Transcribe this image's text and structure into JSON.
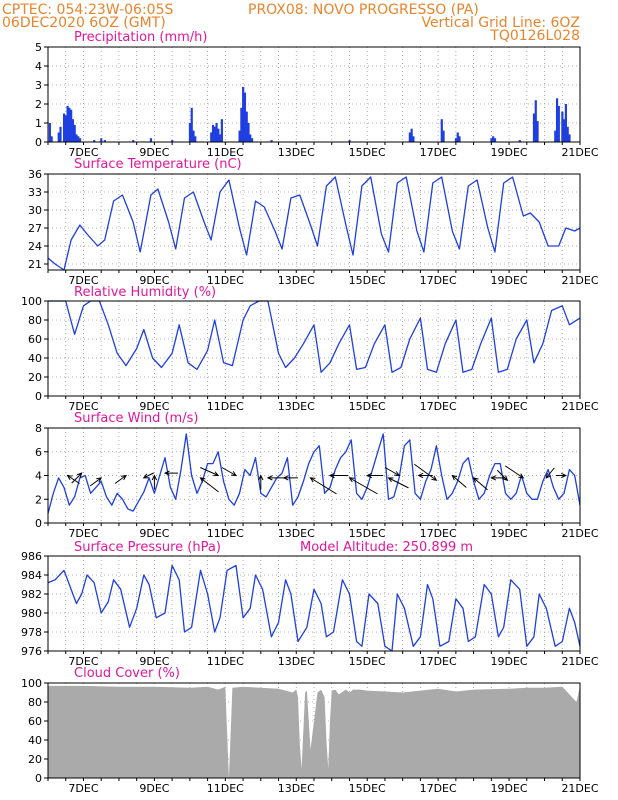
{
  "header": {
    "line1_left": "CPTEC:   054:23W-06:05S",
    "line1_right": "PROX08: NOVO PROGRESSO (PA)",
    "line2_left": "06DEC2020 6OZ (GMT)",
    "line2_right": "Vertical Grid Line: 6OZ",
    "line3_right": "TQ0126L028"
  },
  "x_axis": {
    "start_day": 6.0,
    "end_day": 21.0,
    "tick_days": [
      7,
      9,
      11,
      13,
      15,
      17,
      19,
      21
    ],
    "tick_labels": [
      "7DEC",
      "9DEC",
      "11DEC",
      "13DEC",
      "15DEC",
      "17DEC",
      "19DEC",
      "21DEC"
    ]
  },
  "chart_data": [
    {
      "type": "bar",
      "title": "Precipitation (mm/h)",
      "ylim": [
        0,
        5
      ],
      "yticks": [
        0,
        1,
        2,
        3,
        4,
        5
      ],
      "color": "#1f3fe0",
      "x": [
        6.05,
        6.1,
        6.3,
        6.35,
        6.45,
        6.5,
        6.55,
        6.6,
        6.65,
        6.7,
        6.75,
        6.8,
        6.85,
        6.9,
        7.3,
        7.5,
        7.6,
        8.4,
        8.9,
        9.5,
        10.0,
        10.05,
        10.1,
        10.15,
        10.6,
        10.65,
        10.7,
        10.75,
        10.8,
        10.85,
        10.9,
        11.4,
        11.45,
        11.5,
        11.55,
        11.6,
        11.65,
        11.7,
        11.75,
        12.3,
        14.5,
        16.2,
        16.25,
        16.3,
        17.1,
        17.15,
        17.5,
        17.55,
        17.6,
        18.5,
        18.55,
        18.6,
        19.3,
        19.7,
        19.75,
        19.8,
        20.3,
        20.35,
        20.4,
        20.5,
        20.55,
        20.6,
        20.65,
        20.7
      ],
      "values": [
        1.0,
        0.3,
        0.5,
        0.8,
        1.5,
        1.4,
        1.9,
        1.8,
        1.7,
        1.2,
        0.9,
        0.4,
        0.3,
        0.2,
        0.1,
        0.2,
        0.1,
        0.1,
        0.2,
        0.1,
        1.0,
        1.8,
        0.6,
        0.3,
        0.5,
        0.9,
        0.8,
        1.0,
        0.7,
        0.4,
        1.2,
        0.6,
        1.8,
        2.9,
        2.6,
        1.6,
        1.0,
        0.4,
        0.2,
        0.1,
        0.1,
        0.5,
        0.7,
        0.3,
        1.2,
        0.6,
        0.2,
        0.5,
        0.3,
        0.2,
        0.3,
        0.2,
        0.1,
        1.5,
        2.2,
        1.1,
        0.6,
        2.3,
        1.9,
        1.6,
        1.2,
        2.0,
        0.8,
        0.4
      ]
    },
    {
      "type": "line",
      "title": "Surface Temperature (nC)",
      "ylim": [
        20,
        36
      ],
      "yticks": [
        21,
        24,
        27,
        30,
        33,
        36
      ],
      "color": "#1f3fe0",
      "x": [
        6.0,
        6.2,
        6.45,
        6.65,
        6.9,
        7.1,
        7.4,
        7.6,
        7.85,
        8.1,
        8.4,
        8.6,
        8.9,
        9.1,
        9.4,
        9.6,
        9.85,
        10.1,
        10.4,
        10.6,
        10.85,
        11.1,
        11.4,
        11.6,
        11.85,
        12.1,
        12.4,
        12.6,
        12.85,
        13.1,
        13.4,
        13.6,
        13.85,
        14.1,
        14.4,
        14.6,
        14.85,
        15.1,
        15.4,
        15.6,
        15.85,
        16.1,
        16.4,
        16.6,
        16.85,
        17.1,
        17.4,
        17.6,
        17.85,
        18.1,
        18.4,
        18.6,
        18.85,
        19.1,
        19.4,
        19.6,
        19.85,
        20.1,
        20.4,
        20.6,
        20.85,
        21.0
      ],
      "values": [
        22.0,
        21.0,
        20.0,
        25.0,
        27.5,
        26.0,
        24.0,
        25.0,
        31.5,
        32.5,
        28.0,
        23.0,
        32.5,
        33.5,
        28.0,
        23.5,
        32.0,
        33.0,
        28.0,
        25.0,
        33.0,
        35.0,
        27.0,
        22.5,
        31.5,
        30.5,
        26.5,
        23.5,
        32.0,
        32.5,
        27.5,
        24.0,
        34.0,
        35.5,
        27.5,
        22.5,
        34.0,
        35.5,
        26.0,
        23.0,
        34.5,
        35.5,
        26.5,
        23.0,
        34.5,
        35.5,
        26.5,
        23.5,
        34.0,
        35.0,
        27.0,
        23.0,
        34.5,
        35.5,
        29.0,
        29.5,
        28.0,
        24.0,
        24.0,
        27.0,
        26.5,
        27.0
      ]
    },
    {
      "type": "line",
      "title": "Relative Humidity (%)",
      "ylim": [
        0,
        100
      ],
      "yticks": [
        0,
        20,
        40,
        60,
        80,
        100
      ],
      "color": "#1f3fe0",
      "x": [
        6.0,
        6.3,
        6.5,
        6.75,
        7.0,
        7.2,
        7.45,
        7.7,
        7.95,
        8.2,
        8.5,
        8.7,
        8.95,
        9.2,
        9.5,
        9.7,
        9.95,
        10.2,
        10.5,
        10.7,
        10.95,
        11.2,
        11.5,
        11.7,
        11.95,
        12.2,
        12.5,
        12.7,
        12.95,
        13.2,
        13.5,
        13.7,
        13.95,
        14.2,
        14.5,
        14.7,
        14.95,
        15.2,
        15.5,
        15.7,
        15.95,
        16.2,
        16.5,
        16.7,
        16.95,
        17.2,
        17.5,
        17.7,
        17.95,
        18.2,
        18.5,
        18.7,
        18.95,
        19.2,
        19.5,
        19.7,
        19.95,
        20.2,
        20.5,
        20.7,
        21.0
      ],
      "values": [
        100,
        100,
        100,
        65,
        95,
        100,
        100,
        75,
        45,
        32,
        50,
        70,
        40,
        30,
        45,
        75,
        35,
        28,
        48,
        80,
        35,
        32,
        80,
        95,
        100,
        100,
        45,
        30,
        40,
        55,
        75,
        25,
        35,
        55,
        75,
        28,
        30,
        55,
        75,
        25,
        30,
        60,
        82,
        28,
        25,
        55,
        80,
        25,
        28,
        55,
        82,
        25,
        28,
        60,
        80,
        35,
        55,
        90,
        95,
        75,
        82
      ]
    },
    {
      "type": "line",
      "title": "Surface Wind (m/s)",
      "ylim": [
        0,
        8
      ],
      "yticks": [
        0,
        2,
        4,
        6,
        8
      ],
      "color": "#1f3fe0",
      "x": [
        6.0,
        6.15,
        6.3,
        6.45,
        6.6,
        6.75,
        6.9,
        7.05,
        7.2,
        7.35,
        7.5,
        7.65,
        7.8,
        7.95,
        8.1,
        8.25,
        8.4,
        8.55,
        8.7,
        8.85,
        9.0,
        9.15,
        9.3,
        9.45,
        9.6,
        9.75,
        9.9,
        10.05,
        10.2,
        10.35,
        10.5,
        10.65,
        10.8,
        10.95,
        11.1,
        11.25,
        11.4,
        11.55,
        11.7,
        11.85,
        12.0,
        12.15,
        12.3,
        12.45,
        12.6,
        12.75,
        12.9,
        13.05,
        13.2,
        13.35,
        13.5,
        13.65,
        13.8,
        13.95,
        14.1,
        14.25,
        14.4,
        14.55,
        14.7,
        14.85,
        15.0,
        15.15,
        15.3,
        15.45,
        15.6,
        15.75,
        15.9,
        16.05,
        16.2,
        16.35,
        16.5,
        16.65,
        16.8,
        16.95,
        17.1,
        17.25,
        17.4,
        17.55,
        17.7,
        17.85,
        18.0,
        18.15,
        18.3,
        18.45,
        18.6,
        18.75,
        18.9,
        19.05,
        19.2,
        19.35,
        19.5,
        19.65,
        19.8,
        19.95,
        20.1,
        20.25,
        20.4,
        20.55,
        20.7,
        20.85,
        21.0
      ],
      "values": [
        0.8,
        2.5,
        3.8,
        3.0,
        1.5,
        2.2,
        3.8,
        4.0,
        2.5,
        3.0,
        3.5,
        2.2,
        1.5,
        2.5,
        2.0,
        1.2,
        1.0,
        1.8,
        2.6,
        3.8,
        2.5,
        4.0,
        5.5,
        3.0,
        2.0,
        4.5,
        7.5,
        4.0,
        2.5,
        3.5,
        5.0,
        5.0,
        6.0,
        3.5,
        2.0,
        1.5,
        2.5,
        4.5,
        4.0,
        5.5,
        2.5,
        2.2,
        3.0,
        3.8,
        4.2,
        5.5,
        1.5,
        2.2,
        3.5,
        5.0,
        6.0,
        6.5,
        2.5,
        3.0,
        4.5,
        5.5,
        6.0,
        7.0,
        2.5,
        2.0,
        3.0,
        4.5,
        6.0,
        7.5,
        2.0,
        2.2,
        3.8,
        6.5,
        7.0,
        2.5,
        2.0,
        3.5,
        4.5,
        6.5,
        4.0,
        2.0,
        2.5,
        3.5,
        5.0,
        5.5,
        3.5,
        2.0,
        2.5,
        4.0,
        5.0,
        5.0,
        2.5,
        2.0,
        2.5,
        4.0,
        2.5,
        2.0,
        2.0,
        3.5,
        4.5,
        3.0,
        2.0,
        2.5,
        4.5,
        4.0,
        1.5
      ]
    },
    {
      "type": "line",
      "title": "Surface Pressure (hPa)",
      "annotation": "Model Altitude: 250.899 m",
      "ylim": [
        976,
        986
      ],
      "yticks": [
        976,
        978,
        980,
        982,
        984,
        986
      ],
      "color": "#1f3fe0",
      "x": [
        6.0,
        6.2,
        6.45,
        6.6,
        6.8,
        6.95,
        7.1,
        7.3,
        7.5,
        7.7,
        7.85,
        8.05,
        8.3,
        8.5,
        8.7,
        8.85,
        9.05,
        9.3,
        9.5,
        9.7,
        9.85,
        10.05,
        10.3,
        10.5,
        10.7,
        10.85,
        11.05,
        11.3,
        11.5,
        11.7,
        11.85,
        12.05,
        12.3,
        12.5,
        12.7,
        12.85,
        13.05,
        13.3,
        13.5,
        13.7,
        13.85,
        14.05,
        14.3,
        14.5,
        14.7,
        14.85,
        15.05,
        15.3,
        15.5,
        15.7,
        15.85,
        16.05,
        16.3,
        16.5,
        16.7,
        16.85,
        17.05,
        17.3,
        17.5,
        17.7,
        17.85,
        18.05,
        18.3,
        18.5,
        18.7,
        18.85,
        19.05,
        19.3,
        19.5,
        19.7,
        19.85,
        20.05,
        20.3,
        20.5,
        20.7,
        20.85,
        21.0
      ],
      "values": [
        983.2,
        983.5,
        984.5,
        983.0,
        981.0,
        982.0,
        984.0,
        983.2,
        980.0,
        981.2,
        983.5,
        982.5,
        978.5,
        980.5,
        984.0,
        983.0,
        979.5,
        980.0,
        985.0,
        983.5,
        978.0,
        978.5,
        984.5,
        982.0,
        978.0,
        979.5,
        984.5,
        985.0,
        979.5,
        980.5,
        984.0,
        982.5,
        977.5,
        979.0,
        983.5,
        982.0,
        977.0,
        978.5,
        982.5,
        981.0,
        977.5,
        978.0,
        983.5,
        982.0,
        977.0,
        976.5,
        982.0,
        981.0,
        976.5,
        976.0,
        982.0,
        980.5,
        976.5,
        977.5,
        983.0,
        981.5,
        976.5,
        977.0,
        981.5,
        980.5,
        977.0,
        977.5,
        983.0,
        982.0,
        977.5,
        978.5,
        983.5,
        982.5,
        976.5,
        977.5,
        982.0,
        980.5,
        976.5,
        977.0,
        980.5,
        979.0,
        976.5
      ]
    },
    {
      "type": "area",
      "title": "Cloud Cover (%)",
      "ylim": [
        0,
        100
      ],
      "yticks": [
        0,
        20,
        40,
        60,
        80,
        100
      ],
      "color": "#aaaaaa",
      "x": [
        6.0,
        6.5,
        7.0,
        8.0,
        9.0,
        10.0,
        10.5,
        10.8,
        11.0,
        11.1,
        11.2,
        11.5,
        12.0,
        12.5,
        12.9,
        13.0,
        13.05,
        13.1,
        13.15,
        13.25,
        13.3,
        13.4,
        13.5,
        13.6,
        13.7,
        13.8,
        13.85,
        13.9,
        13.95,
        14.0,
        14.1,
        14.2,
        14.4,
        14.5,
        14.6,
        14.8,
        15.0,
        15.5,
        16.0,
        16.5,
        17.0,
        17.5,
        18.0,
        19.0,
        19.5,
        20.0,
        20.5,
        20.9,
        21.0
      ],
      "values": [
        97,
        97,
        97,
        96,
        96,
        95,
        96,
        93,
        96,
        0,
        95,
        96,
        95,
        94,
        90,
        93,
        85,
        35,
        10,
        90,
        92,
        30,
        60,
        90,
        93,
        85,
        40,
        10,
        60,
        92,
        93,
        88,
        93,
        90,
        93,
        93,
        92,
        91,
        90,
        92,
        94,
        91,
        93,
        94,
        95,
        95,
        96,
        80,
        97
      ]
    }
  ]
}
